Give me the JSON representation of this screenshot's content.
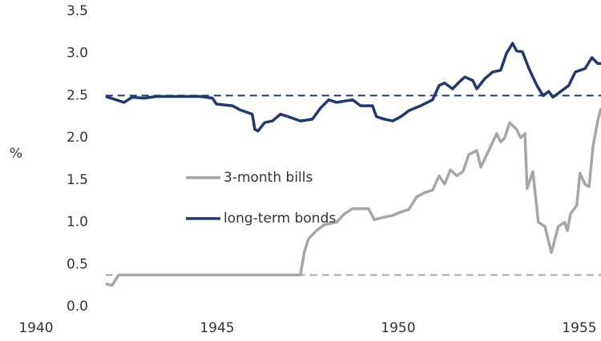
{
  "chart_data": {
    "type": "line",
    "ylabel": "%",
    "xlim": [
      1940,
      1955.6
    ],
    "xticks": [
      1940,
      1945,
      1950,
      1955
    ],
    "ylim": [
      0,
      3.5
    ],
    "yticks": [
      {
        "value": 0,
        "label": "0.0"
      },
      0.5,
      {
        "value": 1,
        "label": "1.0"
      },
      1.5,
      {
        "value": 2,
        "label": "2.0"
      },
      2.5,
      {
        "value": 3,
        "label": "3.0"
      },
      3.5
    ],
    "legend": "center",
    "reference_lines": [
      {
        "value": 2.5,
        "color": "#1f3a73"
      },
      {
        "value": 0.375,
        "color": "#a6a6a6"
      }
    ],
    "series": [
      {
        "name": "3-month bills",
        "color": "#a6a6a6",
        "x": [
          1941.92,
          1942.1,
          1942.28,
          1947.3,
          1947.41,
          1947.52,
          1947.74,
          1947.96,
          1948.3,
          1948.52,
          1948.74,
          1949.18,
          1949.34,
          1949.62,
          1949.85,
          1950.07,
          1950.29,
          1950.51,
          1950.73,
          1950.95,
          1951.13,
          1951.28,
          1951.44,
          1951.62,
          1951.79,
          1951.95,
          1952.17,
          1952.28,
          1952.5,
          1952.72,
          1952.83,
          1952.94,
          1953.08,
          1953.27,
          1953.38,
          1953.5,
          1953.56,
          1953.72,
          1953.87,
          1954.05,
          1954.23,
          1954.42,
          1954.6,
          1954.67,
          1954.76,
          1954.93,
          1955.02,
          1955.16,
          1955.27,
          1955.38,
          1955.51,
          1955.6
        ],
        "values": [
          0.27,
          0.25,
          0.375,
          0.375,
          0.65,
          0.8,
          0.9,
          0.97,
          1.0,
          1.1,
          1.16,
          1.16,
          1.03,
          1.06,
          1.08,
          1.12,
          1.15,
          1.3,
          1.35,
          1.38,
          1.55,
          1.45,
          1.62,
          1.55,
          1.6,
          1.8,
          1.85,
          1.65,
          1.85,
          2.05,
          1.95,
          2.0,
          2.18,
          2.1,
          2.0,
          2.05,
          1.4,
          1.6,
          1.0,
          0.95,
          0.64,
          0.95,
          1.0,
          0.9,
          1.1,
          1.2,
          1.58,
          1.45,
          1.42,
          1.9,
          2.2,
          2.35
        ]
      },
      {
        "name": "long-term bonds",
        "color": "#1f3a73",
        "x": [
          1941.92,
          1942.21,
          1942.43,
          1942.65,
          1942.99,
          1943.32,
          1943.65,
          1944.54,
          1944.87,
          1944.98,
          1945.42,
          1945.64,
          1945.97,
          1946.04,
          1946.13,
          1946.31,
          1946.53,
          1946.75,
          1946.97,
          1947.3,
          1947.63,
          1947.85,
          1948.08,
          1948.3,
          1948.74,
          1948.96,
          1949.29,
          1949.4,
          1949.62,
          1949.85,
          1950.07,
          1950.29,
          1950.62,
          1950.95,
          1951.13,
          1951.28,
          1951.5,
          1951.73,
          1951.84,
          1952.06,
          1952.17,
          1952.39,
          1952.61,
          1952.83,
          1952.99,
          1953.16,
          1953.27,
          1953.43,
          1953.61,
          1953.83,
          1954.0,
          1954.16,
          1954.27,
          1954.49,
          1954.71,
          1954.89,
          1955.16,
          1955.35,
          1955.51,
          1955.6
        ],
        "values": [
          2.49,
          2.45,
          2.42,
          2.48,
          2.47,
          2.49,
          2.49,
          2.49,
          2.47,
          2.4,
          2.38,
          2.33,
          2.28,
          2.1,
          2.08,
          2.18,
          2.2,
          2.28,
          2.25,
          2.2,
          2.22,
          2.35,
          2.45,
          2.42,
          2.45,
          2.38,
          2.38,
          2.25,
          2.22,
          2.2,
          2.25,
          2.32,
          2.38,
          2.45,
          2.62,
          2.65,
          2.58,
          2.68,
          2.72,
          2.68,
          2.58,
          2.7,
          2.78,
          2.8,
          3.0,
          3.12,
          3.03,
          3.02,
          2.82,
          2.62,
          2.5,
          2.55,
          2.48,
          2.55,
          2.62,
          2.78,
          2.82,
          2.95,
          2.88,
          2.88
        ]
      }
    ]
  }
}
